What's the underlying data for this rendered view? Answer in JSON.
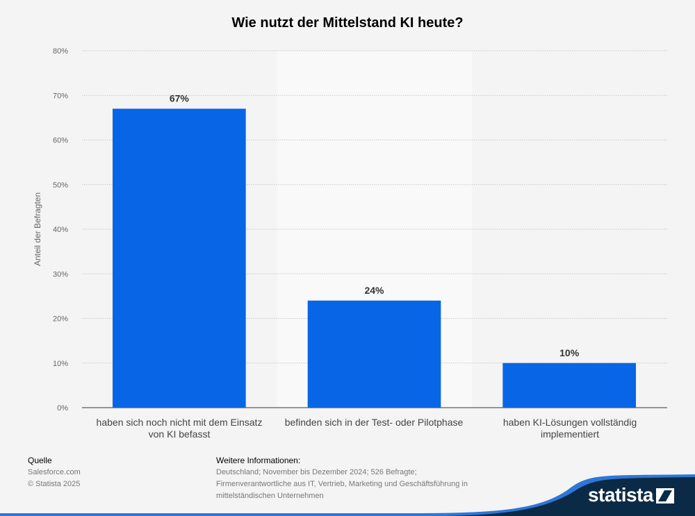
{
  "chart_data": {
    "type": "bar",
    "title": "Wie nutzt der Mittelstand KI heute?",
    "ylabel": "Anteil der Befragten",
    "xlabel": "",
    "categories": [
      "haben sich noch nicht mit dem Einsatz von KI befasst",
      "befinden sich in der Test- oder Pilotphase",
      "haben KI-Lösungen vollständig implementiert"
    ],
    "values": [
      67,
      24,
      10
    ],
    "value_labels": [
      "67%",
      "24%",
      "10%"
    ],
    "ylim": [
      0,
      80
    ],
    "yticks": [
      "0%",
      "10%",
      "20%",
      "30%",
      "40%",
      "50%",
      "60%",
      "70%",
      "80%"
    ],
    "grid": true,
    "bar_color": "#0866e6"
  },
  "footer": {
    "source_heading": "Quelle",
    "source": "Salesforce.com",
    "copyright": "© Statista 2025",
    "info_heading": "Weitere Informationen:",
    "info_lines": [
      "Deutschland; November bis Dezember 2024; 526 Befragte;",
      "Firmenverantwortliche aus IT, Vertrieb, Marketing und Geschäftsführung in",
      "mittelständischen Unternehmen"
    ]
  },
  "brand": {
    "logo": "statista"
  }
}
